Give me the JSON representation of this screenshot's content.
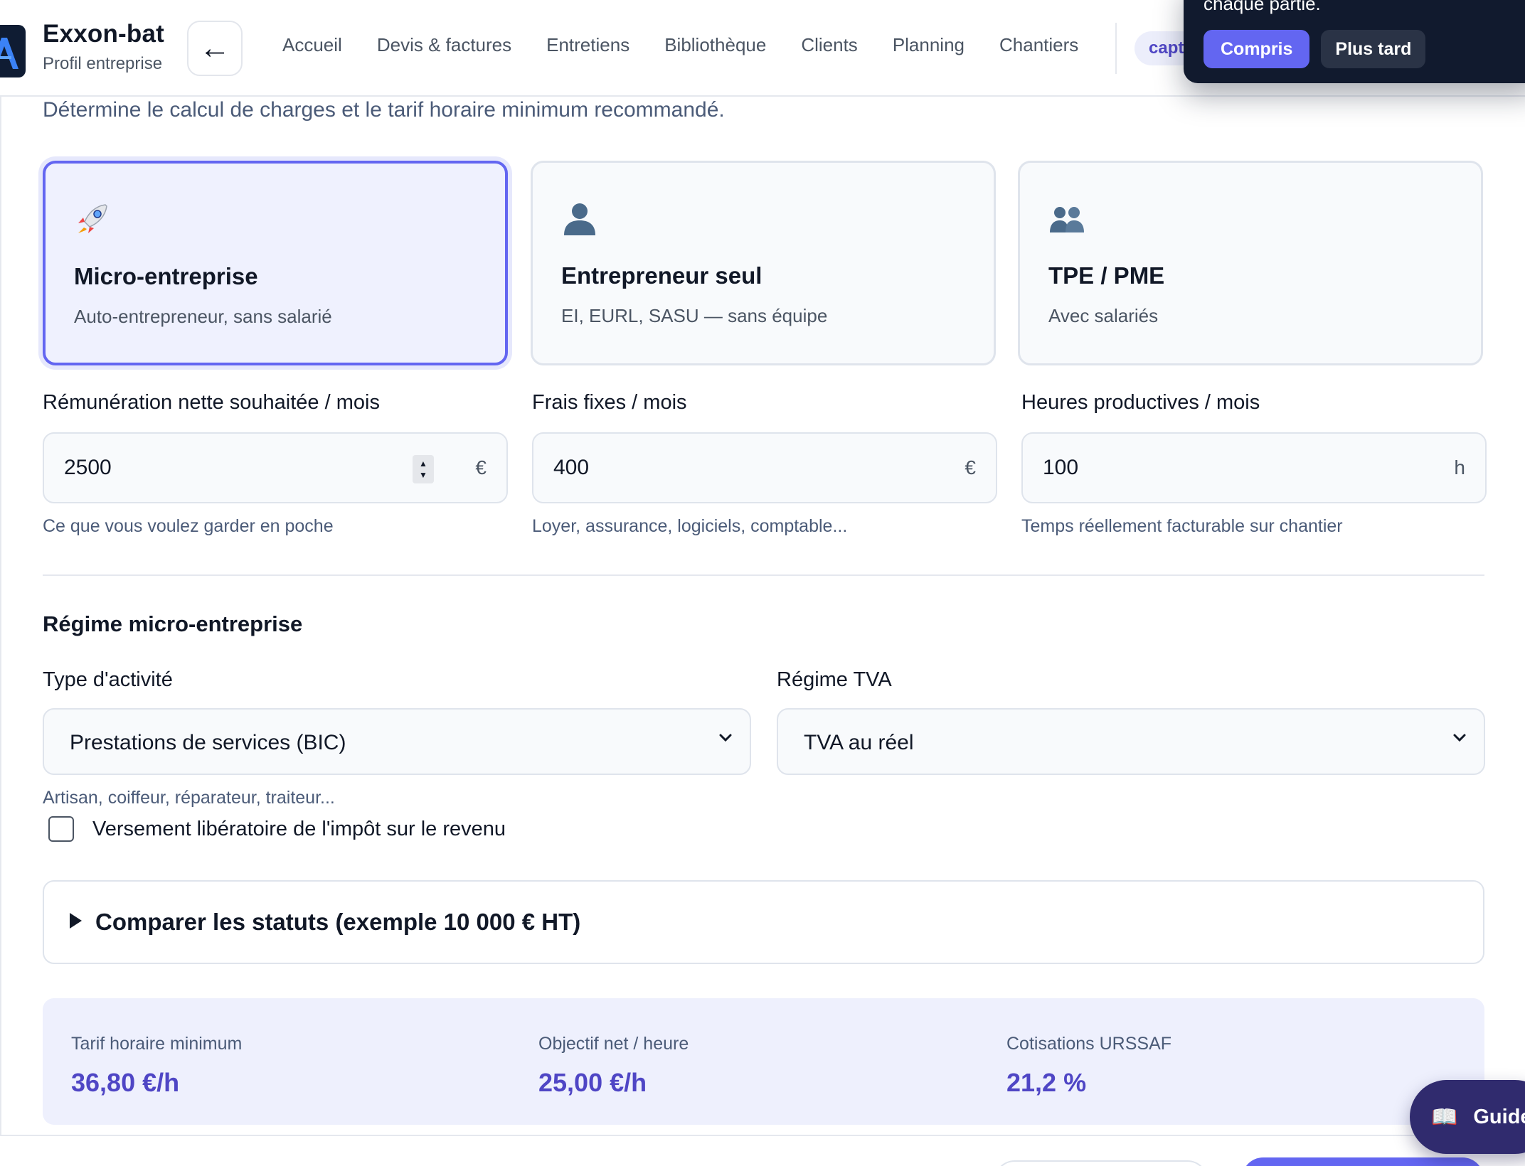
{
  "header": {
    "brand_name": "Exxon-bat",
    "brand_subtitle": "Profil entreprise",
    "back_icon": "←",
    "nav": [
      "Accueil",
      "Devis & factures",
      "Entretiens",
      "Bibliothèque",
      "Clients",
      "Planning",
      "Chantiers"
    ],
    "chip_label": "capt"
  },
  "popover": {
    "text": "chaque partie.",
    "confirm_label": "Compris",
    "later_label": "Plus tard"
  },
  "intro": "Détermine le calcul de charges et le tarif horaire minimum recommandé.",
  "status_cards": [
    {
      "icon": "rocket-icon",
      "title": "Micro-entreprise",
      "desc": "Auto-entrepreneur, sans salarié",
      "selected": true
    },
    {
      "icon": "person-icon",
      "title": "Entrepreneur seul",
      "desc": "EI, EURL, SASU — sans équipe",
      "selected": false
    },
    {
      "icon": "people-icon",
      "title": "TPE / PME",
      "desc": "Avec salariés",
      "selected": false
    }
  ],
  "fields": [
    {
      "label": "Rémunération nette souhaitée / mois",
      "value": "2500",
      "unit": "€",
      "hint": "Ce que vous voulez garder en poche"
    },
    {
      "label": "Frais fixes / mois",
      "value": "400",
      "unit": "€",
      "hint": "Loyer, assurance, logiciels, comptable..."
    },
    {
      "label": "Heures productives / mois",
      "value": "100",
      "unit": "h",
      "hint": "Temps réellement facturable sur chantier"
    }
  ],
  "regime": {
    "title": "Régime micro-entreprise",
    "activity_label": "Type d'activité",
    "activity_value": "Prestations de services (BIC)",
    "activity_hint": "Artisan, coiffeur, réparateur, traiteur...",
    "tva_label": "Régime TVA",
    "tva_value": "TVA au réel",
    "checkbox_label": "Versement libératoire de l'impôt sur le revenu"
  },
  "compare_label": "Comparer les statuts (exemple 10 000 € HT)",
  "results": [
    {
      "label": "Tarif horaire minimum",
      "value": "36,80 €/h"
    },
    {
      "label": "Objectif net / heure",
      "value": "25,00 €/h"
    },
    {
      "label": "Cotisations URSSAF",
      "value": "21,2 %"
    }
  ],
  "guide": {
    "icon": "📖",
    "label": "Guide"
  },
  "colors": {
    "accent": "#6366f1",
    "accent_dark": "#4f46c5",
    "popover_bg": "#111a2e"
  }
}
